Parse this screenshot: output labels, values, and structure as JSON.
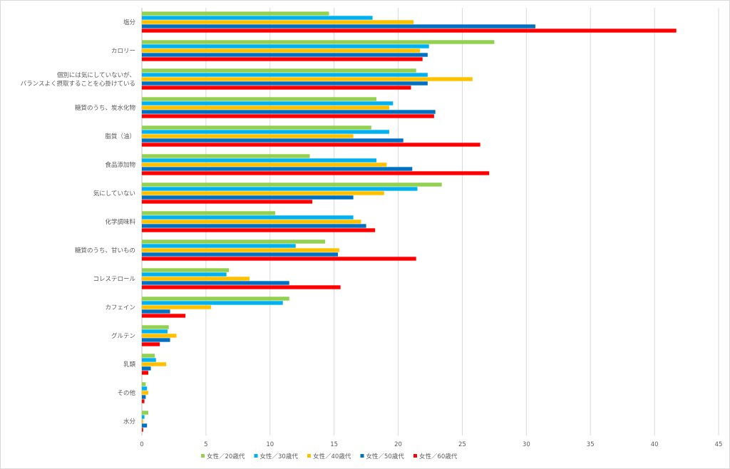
{
  "chart_data": {
    "type": "bar",
    "orientation": "horizontal",
    "title": "",
    "xlabel": "",
    "ylabel": "",
    "xlim": [
      0,
      45
    ],
    "xticks": [
      0,
      5,
      10,
      15,
      20,
      25,
      30,
      35,
      40,
      45
    ],
    "grid": "vertical",
    "legend_position": "bottom",
    "categories": [
      [
        "塩分"
      ],
      [
        "カロリー"
      ],
      [
        "個別には気にしていないが、",
        "バランスよく摂取することを心掛けている"
      ],
      [
        "糖質のうち、炭水化物"
      ],
      [
        "脂質（油）"
      ],
      [
        "食品添加物"
      ],
      [
        "気にしていない"
      ],
      [
        "化学調味料"
      ],
      [
        "糖質のうち、甘いもの"
      ],
      [
        "コレステロール"
      ],
      [
        "カフェイン"
      ],
      [
        "グルテン"
      ],
      [
        "乳類"
      ],
      [
        "その他"
      ],
      [
        "水分"
      ]
    ],
    "series": [
      {
        "name": "女性／20歳代",
        "color": "#92d050",
        "values": [
          14.6,
          27.5,
          21.4,
          18.3,
          17.9,
          13.1,
          23.4,
          10.4,
          14.3,
          6.8,
          11.5,
          2.1,
          1.0,
          0.3,
          0.5
        ]
      },
      {
        "name": "女性／30歳代",
        "color": "#00b0f0",
        "values": [
          18.0,
          22.4,
          22.3,
          19.6,
          19.3,
          18.3,
          21.5,
          16.5,
          12.0,
          6.6,
          11.0,
          2.0,
          1.1,
          0.4,
          0.2
        ]
      },
      {
        "name": "女性／40歳代",
        "color": "#ffc000",
        "values": [
          21.2,
          21.7,
          25.8,
          19.3,
          16.5,
          19.1,
          18.9,
          17.1,
          15.4,
          8.4,
          5.4,
          2.7,
          1.9,
          0.5,
          0.1
        ]
      },
      {
        "name": "女性／50歳代",
        "color": "#0070c0",
        "values": [
          30.7,
          22.3,
          22.3,
          22.9,
          20.4,
          21.1,
          16.5,
          17.5,
          15.3,
          11.5,
          2.2,
          2.2,
          0.7,
          0.3,
          0.4
        ]
      },
      {
        "name": "女性／60歳代",
        "color": "#ff0000",
        "values": [
          41.7,
          21.9,
          21.0,
          22.8,
          26.4,
          27.1,
          13.3,
          18.2,
          21.4,
          15.5,
          3.4,
          1.4,
          0.5,
          0.2,
          0.1
        ]
      }
    ]
  }
}
